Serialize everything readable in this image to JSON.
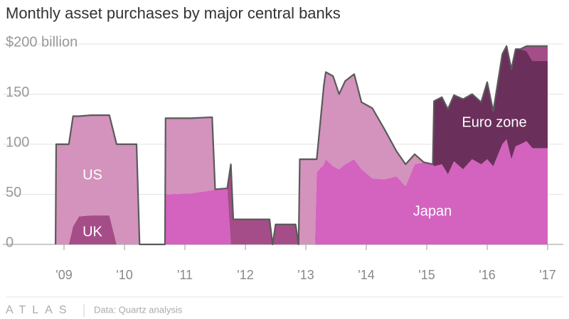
{
  "chart_data": {
    "type": "stacked-area",
    "title": "Monthly asset purchases by major central banks",
    "x": [
      2008.86,
      2008.87,
      2009.08,
      2009.15,
      2009.25,
      2009.45,
      2009.75,
      2009.87,
      2010.2,
      2010.25,
      2010.67,
      2010.68,
      2011.1,
      2011.45,
      2011.5,
      2011.7,
      2011.76,
      2011.8,
      2012.4,
      2012.45,
      2012.5,
      2012.83,
      2012.88,
      2012.9,
      2013.15,
      2013.18,
      2013.3,
      2013.33,
      2013.45,
      2013.55,
      2013.65,
      2013.8,
      2013.92,
      2014.1,
      2014.3,
      2014.5,
      2014.65,
      2014.8,
      2014.95,
      2015.1,
      2015.12,
      2015.25,
      2015.35,
      2015.45,
      2015.6,
      2015.75,
      2015.9,
      2016.0,
      2016.1,
      2016.25,
      2016.32,
      2016.4,
      2016.47,
      2016.55,
      2016.65,
      2016.75,
      2017.0
    ],
    "series": [
      {
        "name": "Japan",
        "color": "#d462bf",
        "values": [
          0,
          0,
          0,
          0,
          0,
          0,
          0,
          0,
          0,
          0,
          0,
          50,
          51,
          54,
          55,
          56,
          0,
          0,
          0,
          0,
          0,
          0,
          0,
          0,
          0,
          72,
          80,
          85,
          78,
          75,
          80,
          85,
          75,
          66,
          65,
          68,
          58,
          80,
          82,
          80,
          78,
          80,
          70,
          83,
          75,
          85,
          80,
          85,
          78,
          100,
          105,
          85,
          98,
          100,
          103,
          96,
          96
        ]
      },
      {
        "name": "Euro zone",
        "color": "#6b2f5b",
        "values": [
          0,
          0,
          0,
          0,
          0,
          0,
          0,
          0,
          0,
          0,
          0,
          0,
          0,
          0,
          0,
          0,
          0,
          0,
          0,
          0,
          0,
          0,
          0,
          0,
          0,
          0,
          0,
          0,
          0,
          0,
          0,
          0,
          0,
          0,
          0,
          0,
          0,
          0,
          0,
          0,
          65,
          67,
          65,
          66,
          70,
          65,
          62,
          77,
          55,
          90,
          93,
          90,
          97,
          95,
          90,
          87,
          87
        ]
      },
      {
        "name": "UK",
        "color": "#a54d88",
        "values": [
          0,
          0,
          0,
          18,
          28,
          29,
          29,
          0,
          0,
          0,
          0,
          0,
          0,
          0,
          0,
          0,
          80,
          25,
          25,
          0,
          20,
          20,
          0,
          0,
          0,
          0,
          0,
          0,
          0,
          0,
          0,
          0,
          0,
          0,
          0,
          0,
          0,
          0,
          0,
          0,
          0,
          0,
          0,
          0,
          0,
          0,
          0,
          0,
          0,
          0,
          0,
          0,
          0,
          0,
          5,
          15,
          15
        ]
      },
      {
        "name": "US",
        "color": "#d393bc",
        "values": [
          0,
          100,
          100,
          110,
          100,
          100,
          100,
          100,
          100,
          0,
          0,
          76,
          75,
          73,
          0,
          0,
          0,
          0,
          0,
          0,
          0,
          0,
          0,
          85,
          85,
          13,
          80,
          87,
          90,
          75,
          83,
          85,
          67,
          70,
          50,
          25,
          22,
          10,
          0,
          0,
          0,
          0,
          0,
          0,
          0,
          0,
          0,
          0,
          0,
          0,
          0,
          0,
          0,
          0,
          0,
          0,
          0
        ]
      }
    ],
    "xlim": [
      2008.6,
      2017.3
    ],
    "xticks": [
      {
        "value": 2009,
        "label": "'09"
      },
      {
        "value": 2010,
        "label": "'10"
      },
      {
        "value": 2011,
        "label": "'11"
      },
      {
        "value": 2012,
        "label": "'12"
      },
      {
        "value": 2013,
        "label": "'13"
      },
      {
        "value": 2014,
        "label": "'14"
      },
      {
        "value": 2015,
        "label": "'15"
      },
      {
        "value": 2016,
        "label": "'16"
      },
      {
        "value": 2017,
        "label": "'17"
      }
    ],
    "ylim": [
      0,
      200
    ],
    "yticks": [
      0,
      50,
      100,
      150,
      {
        "value": 200,
        "label": "$200 billion"
      }
    ],
    "grid": true
  },
  "footer": {
    "brand": "ATLAS",
    "source": "Data: Quartz analysis"
  }
}
